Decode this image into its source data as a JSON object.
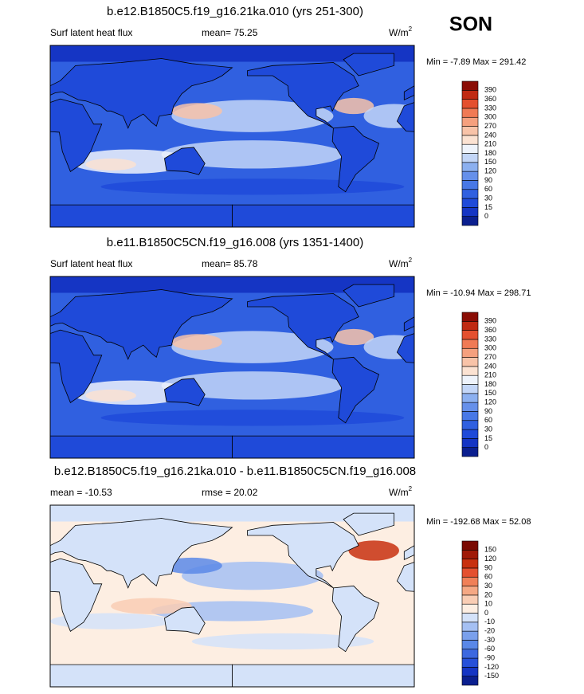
{
  "season": "SON",
  "panels": [
    {
      "title": "b.e12.B1850C5.f19_g16.21ka.010 (yrs 251-300)",
      "left_label": "Surf latent heat flux",
      "center_label": "mean=  75.25",
      "units": "W/m",
      "units_sup": "2",
      "minmax": "Min = -7.89 Max = 291.42",
      "levels": [
        0,
        15,
        30,
        60,
        90,
        120,
        150,
        180,
        210,
        240,
        270,
        300,
        330,
        360,
        390
      ],
      "colors": [
        "#0b1f8f",
        "#1535c4",
        "#1f4ad9",
        "#3060e0",
        "#4878e6",
        "#6690ea",
        "#8cb0f0",
        "#c3d6f7",
        "#eef3fb",
        "#fbe2d2",
        "#f8c3a8",
        "#f5a07e",
        "#f07a55",
        "#e4502f",
        "#c02a12",
        "#8a0d05"
      ]
    },
    {
      "title": "b.e11.B1850C5CN.f19_g16.008 (yrs 1351-1400)",
      "left_label": "Surf latent heat flux",
      "center_label": "mean=  85.78",
      "units": "W/m",
      "units_sup": "2",
      "minmax": "Min = -10.94 Max = 298.71",
      "levels": [
        0,
        15,
        30,
        60,
        90,
        120,
        150,
        180,
        210,
        240,
        270,
        300,
        330,
        360,
        390
      ],
      "colors": [
        "#0b1f8f",
        "#1535c4",
        "#1f4ad9",
        "#3060e0",
        "#4878e6",
        "#6690ea",
        "#8cb0f0",
        "#c3d6f7",
        "#eef3fb",
        "#fbe2d2",
        "#f8c3a8",
        "#f5a07e",
        "#f07a55",
        "#e4502f",
        "#c02a12",
        "#8a0d05"
      ]
    },
    {
      "title": "b.e12.B1850C5.f19_g16.21ka.010 - b.e11.B1850C5CN.f19_g16.008",
      "left_label": "mean = -10.53",
      "center_label": "rmse =  20.02",
      "units": "W/m",
      "units_sup": "2",
      "minmax": "Min = -192.68 Max = 52.08",
      "levels": [
        -150,
        -120,
        -90,
        -60,
        -30,
        -20,
        -10,
        0,
        10,
        20,
        30,
        60,
        90,
        120,
        150
      ],
      "colors": [
        "#0b1f8f",
        "#1535c4",
        "#2650d9",
        "#3c68e0",
        "#5a88e8",
        "#7aa0ec",
        "#a5c0f3",
        "#d4e2f9",
        "#fdeee2",
        "#f9cdb4",
        "#f5a884",
        "#f08058",
        "#e4502f",
        "#c8300f",
        "#a01a08",
        "#7a0a03"
      ]
    }
  ]
}
